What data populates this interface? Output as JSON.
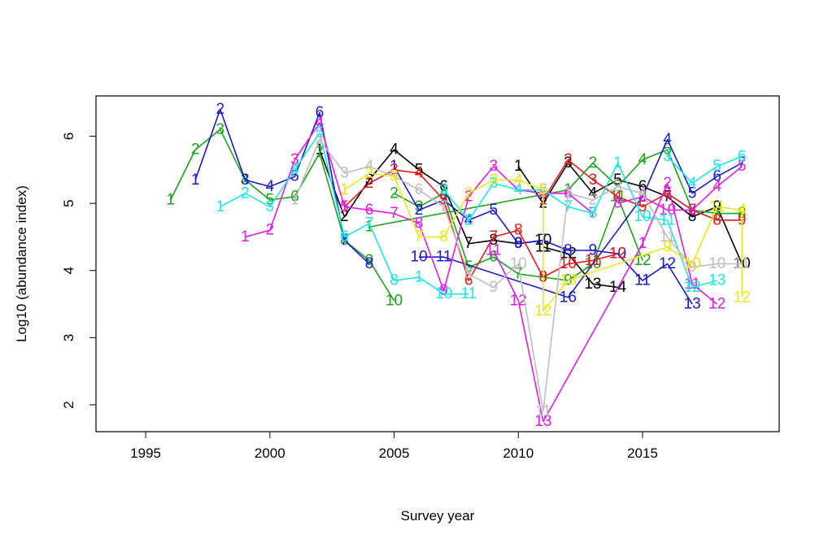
{
  "chart_data": {
    "type": "line",
    "title": "",
    "xlabel": "Survey year",
    "ylabel": "Log10 (abundance index)",
    "xlim": [
      1993,
      2020.5
    ],
    "ylim": [
      1.6,
      6.6
    ],
    "xticks": [
      1995,
      2000,
      2005,
      2010,
      2015
    ],
    "yticks": [
      2,
      3,
      4,
      5,
      6
    ],
    "grid": false,
    "legend": "none",
    "series": [
      {
        "color": "#000000",
        "points": [
          [
            2002,
            5.8,
            "1"
          ],
          [
            2003,
            4.8,
            "2"
          ],
          [
            2004,
            5.35,
            "3"
          ],
          [
            2005,
            5.8,
            "4"
          ],
          [
            2006,
            5.5,
            "5"
          ],
          [
            2007,
            5.25,
            "6"
          ],
          [
            2008,
            4.4,
            "7"
          ],
          [
            2009,
            4.45,
            "8"
          ],
          [
            2010,
            4.4,
            "9"
          ],
          [
            2011,
            4.45,
            "10"
          ]
        ]
      },
      {
        "color": "#000000",
        "points": [
          [
            2010,
            5.55,
            "1"
          ],
          [
            2011,
            5.0,
            "2"
          ],
          [
            2012,
            5.6,
            "3"
          ],
          [
            2013,
            5.15,
            "4"
          ],
          [
            2014,
            5.35,
            "5"
          ],
          [
            2015,
            5.25,
            "6"
          ],
          [
            2016,
            5.1,
            "7"
          ],
          [
            2017,
            4.8,
            "8"
          ],
          [
            2018,
            4.95,
            "9"
          ],
          [
            2019,
            4.1,
            "10"
          ]
        ]
      },
      {
        "color": "#000000",
        "points": [
          [
            2011,
            4.35,
            "11"
          ],
          [
            2012,
            4.25,
            "12"
          ],
          [
            2013,
            3.8,
            "13"
          ],
          [
            2014,
            3.75,
            "14"
          ]
        ]
      },
      {
        "color": "#1aa51a",
        "points": [
          [
            1996,
            5.05,
            "1"
          ],
          [
            1997,
            5.8,
            "2"
          ],
          [
            1998,
            6.1,
            "3"
          ],
          [
            1999,
            5.35,
            "4"
          ],
          [
            2000,
            5.05,
            "5"
          ],
          [
            2001,
            5.1,
            "6"
          ],
          [
            2002,
            5.75,
            "7"
          ],
          [
            2003,
            4.45,
            "8"
          ],
          [
            2004,
            4.15,
            "9"
          ],
          [
            2005,
            3.55,
            "10"
          ]
        ]
      },
      {
        "color": "#1aa51a",
        "points": [
          [
            2005,
            5.15,
            "2"
          ],
          [
            2006,
            4.95,
            "3"
          ],
          [
            2007,
            5.15,
            "4"
          ],
          [
            2008,
            4.05,
            "5"
          ],
          [
            2009,
            4.2,
            "6"
          ],
          [
            2010,
            3.95,
            "7"
          ],
          [
            2011,
            3.9,
            "8"
          ],
          [
            2012,
            3.85,
            "9"
          ],
          [
            2013,
            4.1,
            "10"
          ],
          [
            2014,
            5.1,
            "11"
          ],
          [
            2015,
            4.15,
            "12"
          ]
        ]
      },
      {
        "color": "#1aa51a",
        "points": [
          [
            2004,
            4.65,
            "1"
          ],
          [
            2012,
            5.2,
            "1"
          ],
          [
            2013,
            5.6,
            "2"
          ],
          [
            2014,
            5.25,
            "3"
          ],
          [
            2015,
            5.65,
            "4"
          ],
          [
            2016,
            5.8,
            "5"
          ],
          [
            2017,
            4.9,
            "6"
          ],
          [
            2018,
            4.85,
            "7"
          ],
          [
            2019,
            4.85,
            "8"
          ]
        ]
      },
      {
        "color": "#1a1acd",
        "points": [
          [
            1997,
            5.35,
            "1"
          ],
          [
            1998,
            6.4,
            "2"
          ],
          [
            1999,
            5.35,
            "3"
          ],
          [
            2000,
            5.25,
            "4"
          ],
          [
            2001,
            5.4,
            "5"
          ],
          [
            2002,
            6.35,
            "6"
          ],
          [
            2003,
            4.45,
            "7"
          ],
          [
            2004,
            4.1,
            "8"
          ]
        ]
      },
      {
        "color": "#1a1acd",
        "points": [
          [
            2005,
            5.55,
            "1"
          ],
          [
            2006,
            4.9,
            "2"
          ],
          [
            2007,
            5.05,
            "3"
          ],
          [
            2008,
            4.75,
            "4"
          ],
          [
            2009,
            4.9,
            "5"
          ],
          [
            2010,
            4.4,
            "6"
          ],
          [
            2011,
            4.45,
            "7"
          ],
          [
            2012,
            4.3,
            "8"
          ],
          [
            2013,
            4.3,
            "9"
          ],
          [
            2014,
            4.25,
            "10"
          ],
          [
            2015,
            3.85,
            "11"
          ],
          [
            2016,
            4.1,
            "12"
          ],
          [
            2017,
            3.5,
            "13"
          ]
        ]
      },
      {
        "color": "#1a1acd",
        "points": [
          [
            2006,
            4.2,
            "10"
          ],
          [
            2007,
            4.2,
            "11"
          ],
          [
            2012,
            3.6,
            "16"
          ],
          [
            2015,
            5.1,
            "3"
          ],
          [
            2016,
            5.95,
            "4"
          ],
          [
            2017,
            5.15,
            "5"
          ],
          [
            2018,
            5.4,
            "6"
          ],
          [
            2019,
            5.6,
            "7"
          ]
        ]
      },
      {
        "color": "#e81a1a",
        "points": [
          [
            2003,
            4.95,
            "1"
          ],
          [
            2004,
            5.3,
            "2"
          ],
          [
            2005,
            5.5,
            "3"
          ],
          [
            2006,
            5.45,
            "4"
          ],
          [
            2007,
            5.05,
            "5"
          ],
          [
            2008,
            3.85,
            "6"
          ],
          [
            2009,
            4.5,
            "7"
          ],
          [
            2010,
            4.6,
            "8"
          ],
          [
            2011,
            3.9,
            "9"
          ],
          [
            2012,
            4.1,
            "10"
          ],
          [
            2013,
            4.15,
            "11"
          ],
          [
            2014,
            4.25,
            "12"
          ]
        ]
      },
      {
        "color": "#e81a1a",
        "points": [
          [
            2011,
            5.05,
            "1"
          ],
          [
            2012,
            5.65,
            "2"
          ],
          [
            2013,
            5.35,
            "3"
          ],
          [
            2014,
            5.1,
            "4"
          ],
          [
            2015,
            4.95,
            "5"
          ],
          [
            2016,
            5.15,
            "6"
          ],
          [
            2017,
            4.9,
            "7"
          ],
          [
            2018,
            4.75,
            "8"
          ],
          [
            2019,
            4.75,
            "9"
          ]
        ]
      },
      {
        "color": "#e81ae8",
        "points": [
          [
            1999,
            4.5,
            "1"
          ],
          [
            2000,
            4.6,
            "2"
          ],
          [
            2001,
            5.65,
            "3"
          ],
          [
            2002,
            6.2,
            "4"
          ],
          [
            2003,
            4.95,
            "5"
          ],
          [
            2004,
            4.9,
            "6"
          ],
          [
            2005,
            4.85,
            "7"
          ],
          [
            2006,
            4.7,
            "8"
          ],
          [
            2007,
            3.7,
            "9"
          ],
          [
            2008,
            5.1,
            "2"
          ],
          [
            2009,
            5.55,
            "3"
          ],
          [
            2010,
            5.2,
            "4"
          ],
          [
            2011,
            5.15,
            "5"
          ],
          [
            2012,
            5.15,
            "6"
          ],
          [
            2013,
            4.85,
            "7"
          ]
        ]
      },
      {
        "color": "#e81ae8",
        "points": [
          [
            2009,
            4.3,
            "11"
          ],
          [
            2010,
            3.55,
            "12"
          ],
          [
            2011,
            1.75,
            "13"
          ],
          [
            2015,
            4.4,
            "1"
          ],
          [
            2016,
            5.3,
            "2"
          ],
          [
            2017,
            3.8,
            "11"
          ],
          [
            2018,
            3.5,
            "12"
          ]
        ]
      },
      {
        "color": "#e81ae8",
        "points": [
          [
            2014,
            5.0,
            "8"
          ],
          [
            2015,
            5.1,
            "9"
          ],
          [
            2016,
            4.9,
            "10"
          ],
          [
            2017,
            4.9,
            "3"
          ],
          [
            2018,
            5.25,
            "4"
          ],
          [
            2019,
            5.55,
            "5"
          ]
        ]
      },
      {
        "color": "#1ae8e8",
        "points": [
          [
            1998,
            4.95,
            "1"
          ],
          [
            1999,
            5.15,
            "2"
          ],
          [
            2000,
            4.95,
            "3"
          ],
          [
            2001,
            5.5,
            "4"
          ],
          [
            2002,
            6.05,
            "5"
          ],
          [
            2003,
            4.5,
            "6"
          ],
          [
            2004,
            4.7,
            "7"
          ],
          [
            2005,
            3.85,
            "8"
          ],
          [
            2006,
            3.9,
            "1"
          ],
          [
            2007,
            3.65,
            "10"
          ],
          [
            2008,
            3.65,
            "11"
          ]
        ]
      },
      {
        "color": "#1ae8e8",
        "points": [
          [
            2007,
            5.2,
            "3"
          ],
          [
            2008,
            4.75,
            "2"
          ],
          [
            2009,
            5.3,
            "3"
          ],
          [
            2010,
            5.2,
            "4"
          ],
          [
            2011,
            5.2,
            "6"
          ],
          [
            2012,
            4.95,
            "7"
          ],
          [
            2013,
            4.85,
            "8"
          ],
          [
            2014,
            5.6,
            "1"
          ],
          [
            2015,
            4.8,
            "10"
          ],
          [
            2016,
            4.75,
            "11"
          ],
          [
            2017,
            3.75,
            "12"
          ],
          [
            2018,
            3.85,
            "13"
          ]
        ]
      },
      {
        "color": "#1ae8e8",
        "points": [
          [
            2016,
            5.7,
            "3"
          ],
          [
            2017,
            5.3,
            "4"
          ],
          [
            2018,
            5.55,
            "5"
          ],
          [
            2019,
            5.7,
            "6"
          ]
        ]
      },
      {
        "color": "#bebebe",
        "points": [
          [
            2001,
            5.05,
            "1"
          ],
          [
            2002,
            5.95,
            "2"
          ],
          [
            2003,
            5.45,
            "3"
          ],
          [
            2004,
            5.55,
            "4"
          ],
          [
            2005,
            5.4,
            "5"
          ],
          [
            2006,
            5.2,
            "6"
          ],
          [
            2007,
            4.95,
            "7"
          ],
          [
            2008,
            3.95,
            "8"
          ],
          [
            2009,
            3.75,
            "9"
          ],
          [
            2010,
            4.1,
            "10"
          ],
          [
            2011,
            1.9,
            "11"
          ],
          [
            2012,
            5.15,
            "1"
          ],
          [
            2013,
            5.05,
            "2"
          ],
          [
            2014,
            5.25,
            "3"
          ],
          [
            2015,
            5.15,
            "4"
          ],
          [
            2016,
            4.5,
            "11"
          ],
          [
            2017,
            4.05,
            "9"
          ],
          [
            2018,
            4.1,
            "10"
          ],
          [
            2019,
            4.1,
            "11"
          ]
        ]
      },
      {
        "color": "#e8e81a",
        "points": [
          [
            2003,
            5.2,
            "1"
          ],
          [
            2004,
            5.45,
            "2"
          ],
          [
            2005,
            5.4,
            "3"
          ],
          [
            2006,
            4.5,
            "7"
          ],
          [
            2007,
            4.5,
            "8"
          ],
          [
            2008,
            5.15,
            "2"
          ],
          [
            2009,
            5.35,
            "3"
          ],
          [
            2010,
            5.35,
            "4"
          ],
          [
            2011,
            5.2,
            "5"
          ],
          [
            2011,
            3.4,
            "12"
          ],
          [
            2012,
            3.85,
            "13"
          ],
          [
            2016,
            4.35,
            "9"
          ],
          [
            2017,
            4.1,
            "10"
          ],
          [
            2018,
            4.95,
            "11"
          ],
          [
            2019,
            4.9,
            "4"
          ],
          [
            2019,
            3.6,
            "12"
          ]
        ]
      }
    ]
  }
}
